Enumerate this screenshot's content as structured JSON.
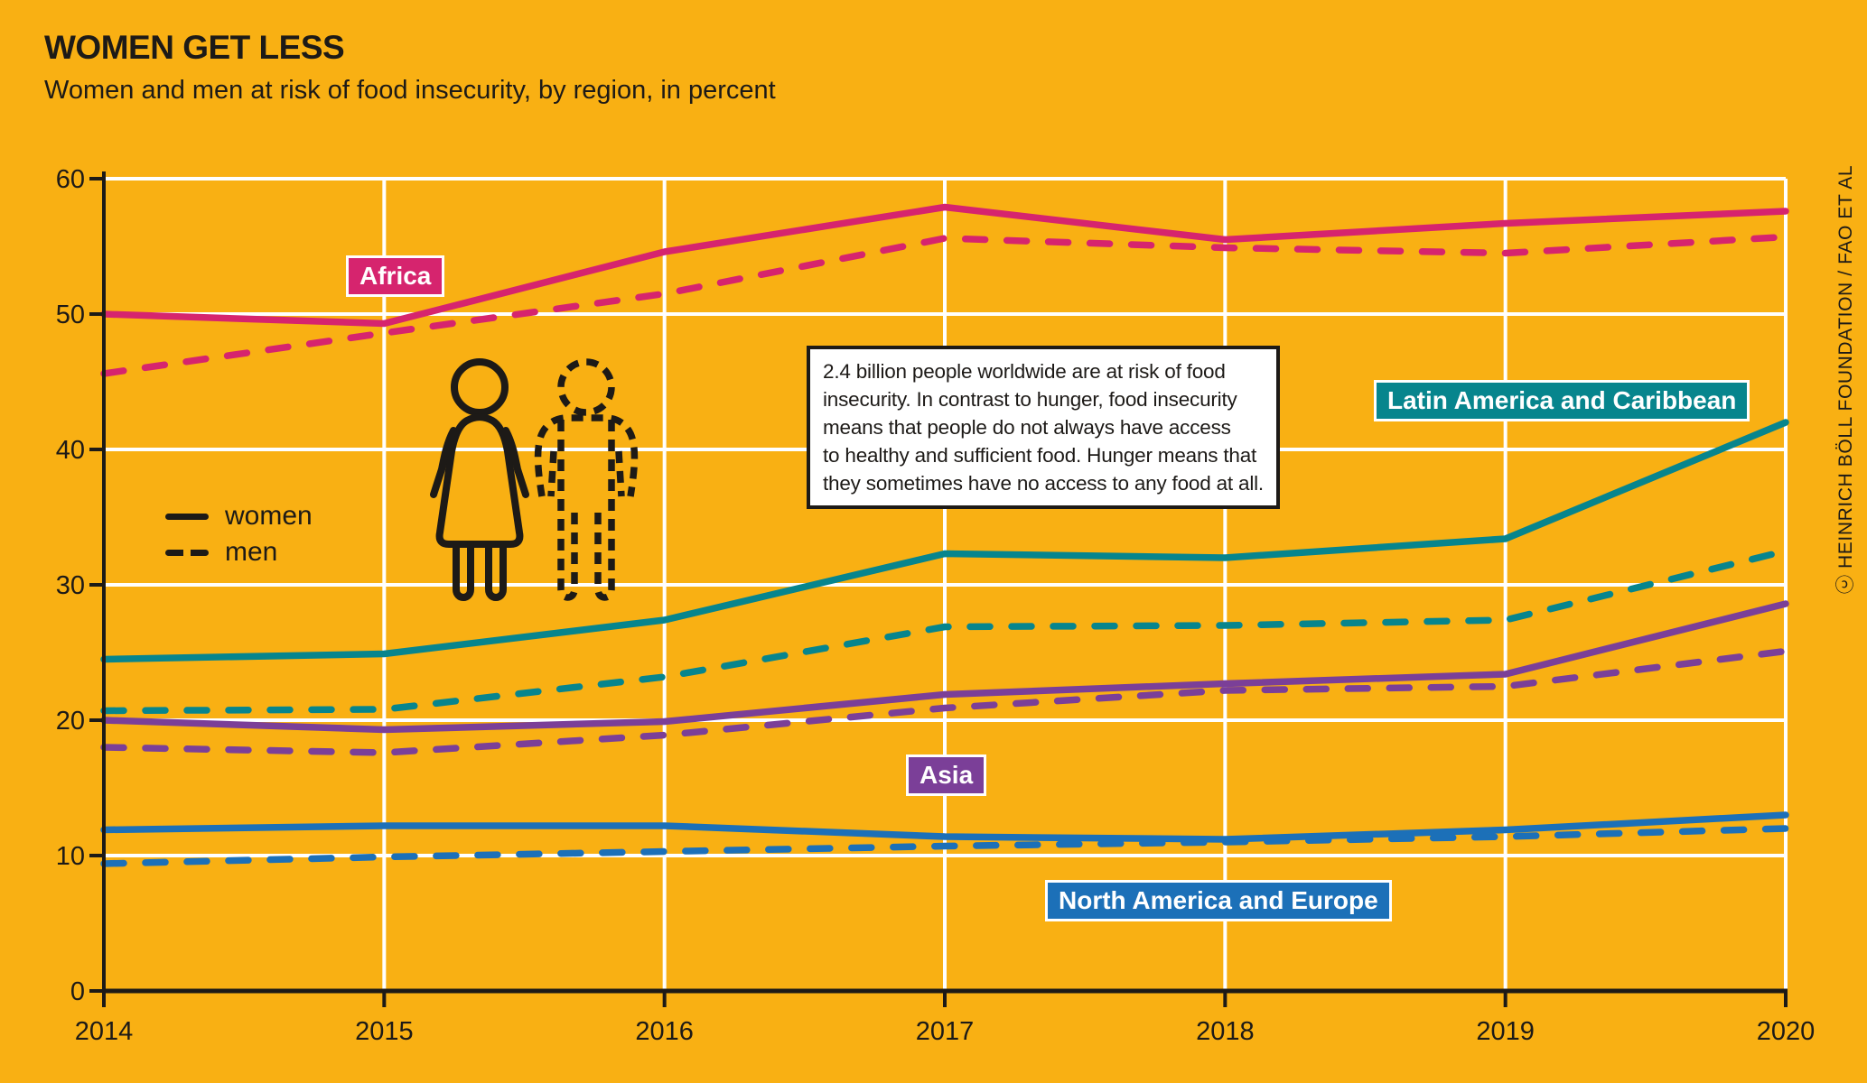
{
  "header": {
    "title": "WOMEN GET LESS",
    "subtitle": "Women and men at risk of food insecurity, by region, in percent"
  },
  "credit": "ⓒ HEINRICH BÖLL FOUNDATION / FAO ET AL",
  "legend": {
    "women": "women",
    "men": "men"
  },
  "regions": {
    "africa": "Africa",
    "latam": "Latin America and Caribbean",
    "asia": "Asia",
    "nae": "North America and Europe"
  },
  "annotation": {
    "lines": [
      "2.4 billion people worldwide are at risk of food",
      "insecurity. In contrast to hunger, food insecurity",
      "means that people do not always have access",
      "to healthy and sufficient food. Hunger means that",
      "they sometimes have no access to any food at all."
    ]
  },
  "colors": {
    "background": "#F9B013",
    "africa": "#D6246E",
    "latam": "#07858D",
    "asia": "#7B3F98",
    "nae": "#1C70B8",
    "ink": "#1D1A17",
    "grid": "#FFFFFF"
  },
  "chart_data": {
    "type": "line",
    "title": "WOMEN GET LESS",
    "subtitle": "Women and men at risk of food insecurity, by region, in percent",
    "xlabel": "",
    "ylabel": "percent",
    "x": [
      2014,
      2015,
      2016,
      2017,
      2018,
      2019,
      2020
    ],
    "ylim": [
      0,
      60
    ],
    "y_ticks": [
      0,
      10,
      20,
      30,
      40,
      50,
      60
    ],
    "grid": true,
    "legend": {
      "solid": "women",
      "dashed": "men"
    },
    "series": [
      {
        "id": "africa-women",
        "region": "Africa",
        "sex": "women",
        "line": "solid",
        "color": "#D6246E",
        "values": [
          50.0,
          49.3,
          54.6,
          57.9,
          55.5,
          56.7,
          57.6
        ]
      },
      {
        "id": "africa-men",
        "region": "Africa",
        "sex": "men",
        "line": "dashed",
        "color": "#D6246E",
        "values": [
          45.6,
          48.6,
          51.5,
          55.6,
          54.9,
          54.5,
          55.7
        ]
      },
      {
        "id": "latam-women",
        "region": "Latin America and Caribbean",
        "sex": "women",
        "line": "solid",
        "color": "#07858D",
        "values": [
          24.5,
          24.9,
          27.4,
          32.3,
          32.0,
          33.4,
          42.0
        ]
      },
      {
        "id": "latam-men",
        "region": "Latin America and Caribbean",
        "sex": "men",
        "line": "dashed",
        "color": "#07858D",
        "values": [
          20.7,
          20.8,
          23.2,
          26.9,
          27.0,
          27.4,
          32.5
        ]
      },
      {
        "id": "asia-women",
        "region": "Asia",
        "sex": "women",
        "line": "solid",
        "color": "#7B3F98",
        "values": [
          20.0,
          19.3,
          19.9,
          21.9,
          22.7,
          23.4,
          28.6
        ]
      },
      {
        "id": "asia-men",
        "region": "Asia",
        "sex": "men",
        "line": "dashed",
        "color": "#7B3F98",
        "values": [
          18.0,
          17.6,
          18.9,
          20.9,
          22.2,
          22.5,
          25.1
        ]
      },
      {
        "id": "nae-women",
        "region": "North America and Europe",
        "sex": "women",
        "line": "solid",
        "color": "#1C70B8",
        "values": [
          11.9,
          12.2,
          12.2,
          11.4,
          11.2,
          11.9,
          13.0
        ]
      },
      {
        "id": "nae-men",
        "region": "North America and Europe",
        "sex": "men",
        "line": "dashed",
        "color": "#1C70B8",
        "values": [
          9.4,
          9.9,
          10.3,
          10.7,
          11.0,
          11.4,
          12.0
        ]
      }
    ]
  }
}
